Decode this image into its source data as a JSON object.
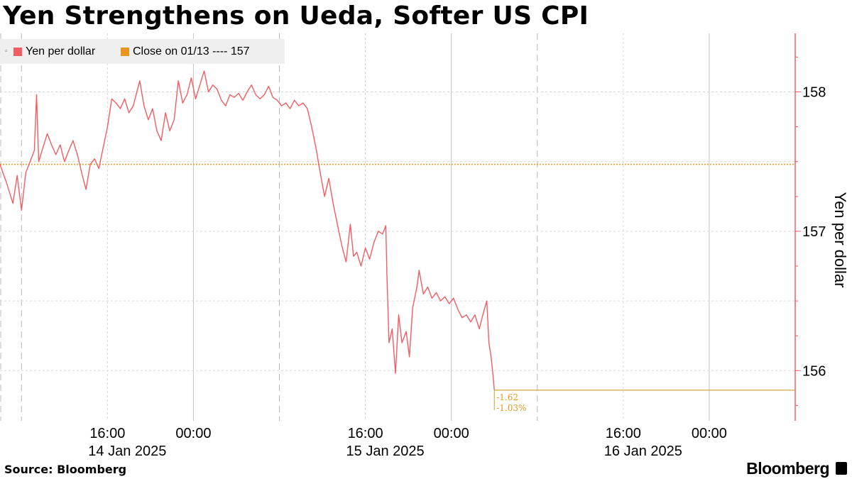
{
  "chart_data": {
    "type": "line",
    "title": "Yen Strengthens on Ueda, Softer US CPI",
    "ylabel": "Yen per dollar",
    "ylim": [
      155.64,
      158.42
    ],
    "y_ticks": [
      "156",
      "157",
      "158"
    ],
    "x_ticks": [
      {
        "time": "16:00",
        "date": "14 Jan 2025",
        "t": 16
      },
      {
        "time": "00:00",
        "date": "",
        "t": 24
      },
      {
        "time": "16:00",
        "date": "15 Jan 2025",
        "t": 40
      },
      {
        "time": "00:00",
        "date": "",
        "t": 48
      },
      {
        "time": "16:00",
        "date": "16 Jan 2025",
        "t": 64
      },
      {
        "time": "00:00",
        "date": "",
        "t": 72
      }
    ],
    "xlim": [
      6,
      80
    ],
    "series": [
      {
        "name": "Yen per dollar",
        "color": "#f15d62",
        "points": [
          [
            6.0,
            157.48
          ],
          [
            6.6,
            157.35
          ],
          [
            7.2,
            157.2
          ],
          [
            7.6,
            157.4
          ],
          [
            8.0,
            157.15
          ],
          [
            8.4,
            157.42
          ],
          [
            8.8,
            157.5
          ],
          [
            9.2,
            157.58
          ],
          [
            9.4,
            157.98
          ],
          [
            9.6,
            157.5
          ],
          [
            10.0,
            157.6
          ],
          [
            10.4,
            157.7
          ],
          [
            10.8,
            157.62
          ],
          [
            11.2,
            157.55
          ],
          [
            11.6,
            157.62
          ],
          [
            12.0,
            157.5
          ],
          [
            12.4,
            157.58
          ],
          [
            12.8,
            157.65
          ],
          [
            13.2,
            157.55
          ],
          [
            13.6,
            157.42
          ],
          [
            14.0,
            157.3
          ],
          [
            14.4,
            157.48
          ],
          [
            14.8,
            157.52
          ],
          [
            15.2,
            157.45
          ],
          [
            15.6,
            157.6
          ],
          [
            16.0,
            157.75
          ],
          [
            16.4,
            157.95
          ],
          [
            16.8,
            157.92
          ],
          [
            17.2,
            157.88
          ],
          [
            17.6,
            157.95
          ],
          [
            18.0,
            157.85
          ],
          [
            18.4,
            157.9
          ],
          [
            19.0,
            158.08
          ],
          [
            19.4,
            157.9
          ],
          [
            19.8,
            157.8
          ],
          [
            20.2,
            157.88
          ],
          [
            20.6,
            157.72
          ],
          [
            21.0,
            157.65
          ],
          [
            21.4,
            157.85
          ],
          [
            21.8,
            157.72
          ],
          [
            22.2,
            157.8
          ],
          [
            22.6,
            158.08
          ],
          [
            23.0,
            157.92
          ],
          [
            23.4,
            157.98
          ],
          [
            23.8,
            158.1
          ],
          [
            24.2,
            157.95
          ],
          [
            24.6,
            158.05
          ],
          [
            25.0,
            158.15
          ],
          [
            25.4,
            158.0
          ],
          [
            25.8,
            158.05
          ],
          [
            26.2,
            158.02
          ],
          [
            26.6,
            157.94
          ],
          [
            27.0,
            157.9
          ],
          [
            27.4,
            157.98
          ],
          [
            27.8,
            157.96
          ],
          [
            28.2,
            157.99
          ],
          [
            28.6,
            157.94
          ],
          [
            29.0,
            158.0
          ],
          [
            29.4,
            158.05
          ],
          [
            29.8,
            157.98
          ],
          [
            30.2,
            157.95
          ],
          [
            30.6,
            157.98
          ],
          [
            31.0,
            158.04
          ],
          [
            31.4,
            157.96
          ],
          [
            31.8,
            157.94
          ],
          [
            32.2,
            157.9
          ],
          [
            32.6,
            157.92
          ],
          [
            33.0,
            157.88
          ],
          [
            33.4,
            157.94
          ],
          [
            33.8,
            157.9
          ],
          [
            34.2,
            157.92
          ],
          [
            34.6,
            157.88
          ],
          [
            35.0,
            157.75
          ],
          [
            35.4,
            157.6
          ],
          [
            35.8,
            157.42
          ],
          [
            36.2,
            157.25
          ],
          [
            36.6,
            157.38
          ],
          [
            37.0,
            157.2
          ],
          [
            37.4,
            157.05
          ],
          [
            37.8,
            156.9
          ],
          [
            38.2,
            156.78
          ],
          [
            38.6,
            157.05
          ],
          [
            38.9,
            156.82
          ],
          [
            39.2,
            156.85
          ],
          [
            39.6,
            156.75
          ],
          [
            40.0,
            156.88
          ],
          [
            40.4,
            156.8
          ],
          [
            40.8,
            156.92
          ],
          [
            41.2,
            157.0
          ],
          [
            41.6,
            156.98
          ],
          [
            41.9,
            157.04
          ],
          [
            42.0,
            156.7
          ],
          [
            42.2,
            156.2
          ],
          [
            42.5,
            156.3
          ],
          [
            42.8,
            155.98
          ],
          [
            43.1,
            156.4
          ],
          [
            43.4,
            156.2
          ],
          [
            43.8,
            156.28
          ],
          [
            44.1,
            156.1
          ],
          [
            44.4,
            156.45
          ],
          [
            44.8,
            156.6
          ],
          [
            45.0,
            156.72
          ],
          [
            45.4,
            156.55
          ],
          [
            45.8,
            156.6
          ],
          [
            46.2,
            156.52
          ],
          [
            46.6,
            156.56
          ],
          [
            47.0,
            156.5
          ],
          [
            47.4,
            156.53
          ],
          [
            47.8,
            156.48
          ],
          [
            48.2,
            156.52
          ],
          [
            48.6,
            156.44
          ],
          [
            49.0,
            156.38
          ],
          [
            49.4,
            156.4
          ],
          [
            49.8,
            156.35
          ],
          [
            50.2,
            156.4
          ],
          [
            50.6,
            156.3
          ],
          [
            51.0,
            156.42
          ],
          [
            51.3,
            156.5
          ],
          [
            51.5,
            156.2
          ],
          [
            51.7,
            156.1
          ],
          [
            51.9,
            155.95
          ],
          [
            52.0,
            155.86
          ],
          [
            80.0,
            155.86
          ]
        ]
      }
    ],
    "reference_line": {
      "label": "Close on 01/13 ---- 157",
      "value": 157.48,
      "color": "#e8961e"
    },
    "change_labels": [
      "-1.62",
      "-1.03%"
    ],
    "legend": [
      "Yen per dollar",
      "Close on 01/13 ---- 157"
    ],
    "grid": true,
    "legend_placement": "top-left"
  },
  "source": "Source: Bloomberg",
  "brand": "Bloomberg"
}
